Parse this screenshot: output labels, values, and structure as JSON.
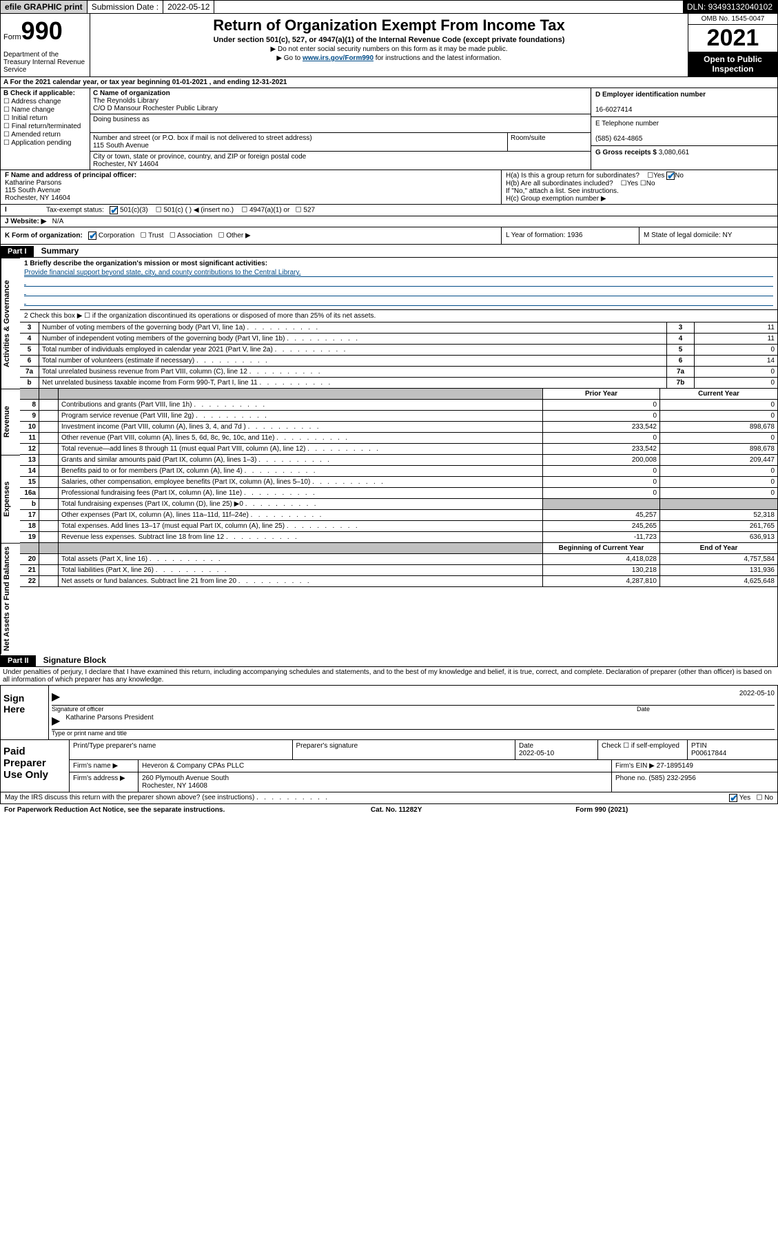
{
  "topbar": {
    "efile": "efile GRAPHIC print",
    "sub_label": "Submission Date :",
    "sub_date": "2022-05-12",
    "dln": "DLN: 93493132040102"
  },
  "header": {
    "form": "Form",
    "num": "990",
    "dept": "Department of the Treasury Internal Revenue Service",
    "title": "Return of Organization Exempt From Income Tax",
    "sub": "Under section 501(c), 527, or 4947(a)(1) of the Internal Revenue Code (except private foundations)",
    "note1": "▶ Do not enter social security numbers on this form as it may be made public.",
    "note2_pre": "▶ Go to ",
    "note2_link": "www.irs.gov/Form990",
    "note2_post": " for instructions and the latest information.",
    "omb": "OMB No. 1545-0047",
    "year": "2021",
    "open": "Open to Public Inspection"
  },
  "row_a": "A For the 2021 calendar year, or tax year beginning 01-01-2021   , and ending 12-31-2021",
  "col_b": {
    "label": "B Check if applicable:",
    "items": [
      "Address change",
      "Name change",
      "Initial return",
      "Final return/terminated",
      "Amended return",
      "Application pending"
    ]
  },
  "col_c": {
    "name_label": "C Name of organization",
    "name": "The Reynolds Library",
    "name2": "C/O D Mansour Rochester Public Library",
    "dba_label": "Doing business as",
    "street_label": "Number and street (or P.O. box if mail is not delivered to street address)",
    "room_label": "Room/suite",
    "street": "115 South Avenue",
    "city_label": "City or town, state or province, country, and ZIP or foreign postal code",
    "city": "Rochester, NY  14604"
  },
  "col_d": {
    "ein_label": "D Employer identification number",
    "ein": "16-6027414",
    "phone_label": "E Telephone number",
    "phone": "(585) 624-4865",
    "gross_label": "G Gross receipts $",
    "gross": "3,080,661"
  },
  "f": {
    "label": "F Name and address of principal officer:",
    "name": "Katharine Parsons",
    "addr1": "115 South Avenue",
    "addr2": "Rochester, NY  14604"
  },
  "h": {
    "a": "H(a)  Is this a group return for subordinates?",
    "b": "H(b)  Are all subordinates included?",
    "b_note": "If \"No,\" attach a list. See instructions.",
    "c": "H(c)  Group exemption number ▶"
  },
  "row_i": {
    "label": "Tax-exempt status:",
    "opt1": "501(c)(3)",
    "opt2": "501(c) (  ) ◀ (insert no.)",
    "opt3": "4947(a)(1) or",
    "opt4": "527"
  },
  "row_j": {
    "label": "J  Website: ▶",
    "value": "N/A"
  },
  "row_k": {
    "left": "K Form of organization:",
    "opts": [
      "Corporation",
      "Trust",
      "Association",
      "Other ▶"
    ],
    "l": "L Year of formation: 1936",
    "m": "M State of legal domicile: NY"
  },
  "part1": {
    "hdr": "Part I",
    "title": "Summary"
  },
  "summary": {
    "briefly_label": "1  Briefly describe the organization's mission or most significant activities:",
    "briefly": "Provide financial support beyond state, city, and county contributions to the Central Library.",
    "line2": "2    Check this box ▶ ☐  if the organization discontinued its operations or disposed of more than 25% of its net assets.",
    "rows_gov": [
      {
        "n": "3",
        "t": "Number of voting members of the governing body (Part VI, line 1a)",
        "box": "3",
        "v": "11"
      },
      {
        "n": "4",
        "t": "Number of independent voting members of the governing body (Part VI, line 1b)",
        "box": "4",
        "v": "11"
      },
      {
        "n": "5",
        "t": "Total number of individuals employed in calendar year 2021 (Part V, line 2a)",
        "box": "5",
        "v": "0"
      },
      {
        "n": "6",
        "t": "Total number of volunteers (estimate if necessary)",
        "box": "6",
        "v": "14"
      },
      {
        "n": "7a",
        "t": "Total unrelated business revenue from Part VIII, column (C), line 12",
        "box": "7a",
        "v": "0"
      },
      {
        "n": "b",
        "t": "Net unrelated business taxable income from Form 990-T, Part I, line 11",
        "box": "7b",
        "v": "0"
      }
    ],
    "fin_hdr": {
      "prior": "Prior Year",
      "current": "Current Year"
    },
    "revenue": [
      {
        "n": "8",
        "t": "Contributions and grants (Part VIII, line 1h)",
        "p": "0",
        "c": "0"
      },
      {
        "n": "9",
        "t": "Program service revenue (Part VIII, line 2g)",
        "p": "0",
        "c": "0"
      },
      {
        "n": "10",
        "t": "Investment income (Part VIII, column (A), lines 3, 4, and 7d )",
        "p": "233,542",
        "c": "898,678"
      },
      {
        "n": "11",
        "t": "Other revenue (Part VIII, column (A), lines 5, 6d, 8c, 9c, 10c, and 11e)",
        "p": "0",
        "c": "0"
      },
      {
        "n": "12",
        "t": "Total revenue—add lines 8 through 11 (must equal Part VIII, column (A), line 12)",
        "p": "233,542",
        "c": "898,678"
      }
    ],
    "expenses": [
      {
        "n": "13",
        "t": "Grants and similar amounts paid (Part IX, column (A), lines 1–3)",
        "p": "200,008",
        "c": "209,447"
      },
      {
        "n": "14",
        "t": "Benefits paid to or for members (Part IX, column (A), line 4)",
        "p": "0",
        "c": "0"
      },
      {
        "n": "15",
        "t": "Salaries, other compensation, employee benefits (Part IX, column (A), lines 5–10)",
        "p": "0",
        "c": "0"
      },
      {
        "n": "16a",
        "t": "Professional fundraising fees (Part IX, column (A), line 11e)",
        "p": "0",
        "c": "0"
      },
      {
        "n": "b",
        "t": "Total fundraising expenses (Part IX, column (D), line 25) ▶0",
        "p": "",
        "c": "",
        "shade": true
      },
      {
        "n": "17",
        "t": "Other expenses (Part IX, column (A), lines 11a–11d, 11f–24e)",
        "p": "45,257",
        "c": "52,318"
      },
      {
        "n": "18",
        "t": "Total expenses. Add lines 13–17 (must equal Part IX, column (A), line 25)",
        "p": "245,265",
        "c": "261,765"
      },
      {
        "n": "19",
        "t": "Revenue less expenses. Subtract line 18 from line 12",
        "p": "-11,723",
        "c": "636,913"
      }
    ],
    "na_hdr": {
      "beg": "Beginning of Current Year",
      "end": "End of Year"
    },
    "netassets": [
      {
        "n": "20",
        "t": "Total assets (Part X, line 16)",
        "p": "4,418,028",
        "c": "4,757,584"
      },
      {
        "n": "21",
        "t": "Total liabilities (Part X, line 26)",
        "p": "130,218",
        "c": "131,936"
      },
      {
        "n": "22",
        "t": "Net assets or fund balances. Subtract line 21 from line 20",
        "p": "4,287,810",
        "c": "4,625,648"
      }
    ]
  },
  "vlabels": {
    "gov": "Activities & Governance",
    "rev": "Revenue",
    "exp": "Expenses",
    "na": "Net Assets or Fund Balances"
  },
  "part2": {
    "hdr": "Part II",
    "title": "Signature Block"
  },
  "sig": {
    "penalty": "Under penalties of perjury, I declare that I have examined this return, including accompanying schedules and statements, and to the best of my knowledge and belief, it is true, correct, and complete. Declaration of preparer (other than officer) is based on all information of which preparer has any knowledge.",
    "sign_here": "Sign Here",
    "sig_label": "Signature of officer",
    "date_label": "Date",
    "date": "2022-05-10",
    "name": "Katharine Parsons  President",
    "name_label": "Type or print name and title"
  },
  "prep": {
    "label": "Paid Preparer Use Only",
    "r1": {
      "c1": "Print/Type preparer's name",
      "c2": "Preparer's signature",
      "c3": "Date",
      "c3v": "2022-05-10",
      "c4": "Check ☐ if self-employed",
      "c5": "PTIN",
      "c5v": "P00617844"
    },
    "r2": {
      "label": "Firm's name   ▶",
      "v": "Heveron & Company CPAs PLLC",
      "ein_label": "Firm's EIN ▶",
      "ein": "27-1895149"
    },
    "r3": {
      "label": "Firm's address ▶",
      "v": "260 Plymouth Avenue South",
      "city": "Rochester, NY  14608",
      "ph_label": "Phone no.",
      "ph": "(585) 232-2956"
    }
  },
  "footer": {
    "discuss": "May the IRS discuss this return with the preparer shown above? (see instructions)",
    "yes": "Yes",
    "no": "No",
    "pra": "For Paperwork Reduction Act Notice, see the separate instructions.",
    "cat": "Cat. No. 11282Y",
    "form": "Form 990 (2021)"
  }
}
